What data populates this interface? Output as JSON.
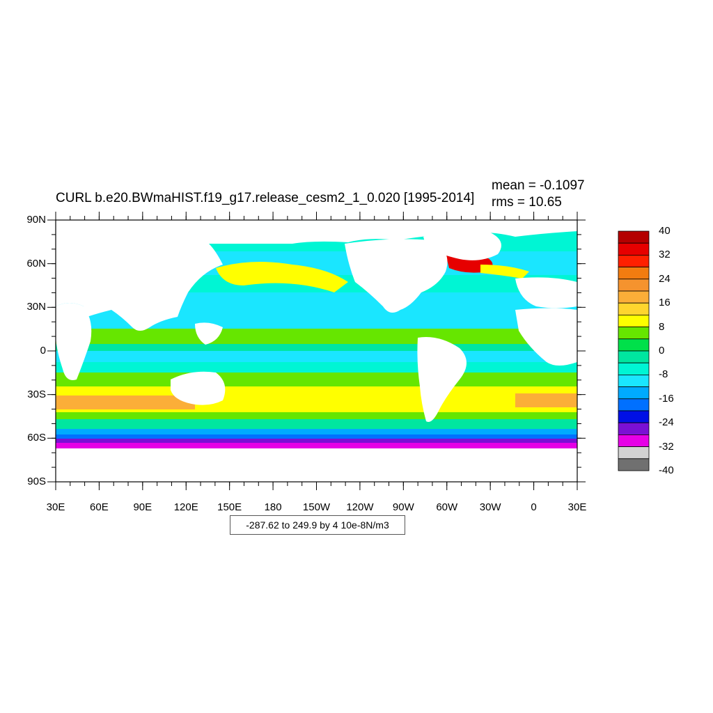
{
  "title": "CURL b.e20.BWmaHIST.f19_g17.release_cesm2_1_0.020 [1995-2014]",
  "stats": {
    "mean": "mean = -0.1097",
    "rms": "rms = 10.65"
  },
  "range_label": "-287.62 to 249.9 by 4 10e-8N/m3",
  "map": {
    "lat_ticks": [
      "90N",
      "60N",
      "30N",
      "0",
      "30S",
      "60S",
      "90S"
    ],
    "lon_ticks": [
      "30E",
      "60E",
      "90E",
      "120E",
      "150E",
      "180",
      "150W",
      "120W",
      "90W",
      "60W",
      "30W",
      "0",
      "30E"
    ],
    "land_color": "#ffffff"
  },
  "colorbar": {
    "labels": [
      "40",
      "32",
      "24",
      "16",
      "8",
      "0",
      "-8",
      "-16",
      "-24",
      "-32",
      "-40"
    ],
    "colors": [
      "#b40000",
      "#e60000",
      "#ff2000",
      "#f27c10",
      "#f5932e",
      "#fbae38",
      "#ffd52e",
      "#ffff00",
      "#66e600",
      "#00e04a",
      "#00e6a0",
      "#00f5d4",
      "#1ae6ff",
      "#00aaff",
      "#0070ff",
      "#0010e6",
      "#7a10d4",
      "#e600e6",
      "#d2d2d2",
      "#707070"
    ]
  }
}
